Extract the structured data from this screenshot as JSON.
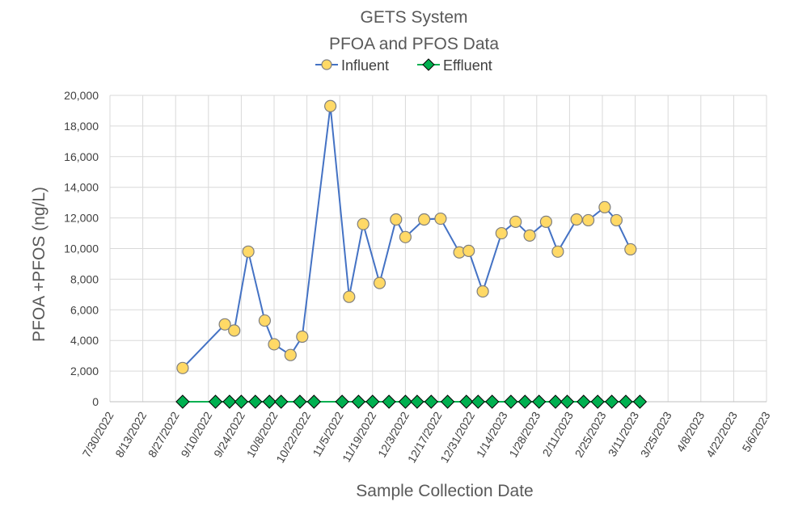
{
  "colors": {
    "influent_line": "#4472c4",
    "influent_marker": "#ffd966",
    "effluent_line": "#00b050",
    "effluent_marker": "#00b050",
    "marker_edge": "#7f7f7f"
  },
  "chart_data": {
    "type": "line",
    "title": "GETS System",
    "subtitle": "PFOA and PFOS Data",
    "xlabel": "Sample Collection Date",
    "ylabel": "PFOA +PFOS (ng/L)",
    "legend_position": "top",
    "grid": true,
    "ylim": [
      0,
      20000
    ],
    "xlim": [
      "7/30/2022",
      "5/6/2023"
    ],
    "y_ticks": [
      "0",
      "2,000",
      "4,000",
      "6,000",
      "8,000",
      "10,000",
      "12,000",
      "14,000",
      "16,000",
      "18,000",
      "20,000"
    ],
    "x_ticks": [
      "7/30/2022",
      "8/13/2022",
      "8/27/2022",
      "9/10/2022",
      "9/24/2022",
      "10/8/2022",
      "10/22/2022",
      "11/5/2022",
      "11/19/2022",
      "12/3/2022",
      "12/17/2022",
      "12/31/2022",
      "1/14/2023",
      "1/28/2023",
      "2/11/2023",
      "2/25/2023",
      "3/11/2023",
      "3/25/2023",
      "4/8/2023",
      "4/22/2023",
      "5/6/2023"
    ],
    "series": [
      {
        "name": "Influent",
        "points": [
          [
            "8/30/2022",
            2200
          ],
          [
            "9/17/2022",
            5050
          ],
          [
            "9/21/2022",
            4650
          ],
          [
            "9/27/2022",
            9800
          ],
          [
            "10/4/2022",
            5300
          ],
          [
            "10/8/2022",
            3750
          ],
          [
            "10/15/2022",
            3050
          ],
          [
            "10/20/2022",
            4250
          ],
          [
            "11/1/2022",
            19300
          ],
          [
            "11/9/2022",
            6850
          ],
          [
            "11/15/2022",
            11600
          ],
          [
            "11/22/2022",
            7750
          ],
          [
            "11/29/2022",
            11900
          ],
          [
            "12/3/2022",
            10750
          ],
          [
            "12/11/2022",
            11900
          ],
          [
            "12/18/2022",
            11950
          ],
          [
            "12/26/2022",
            9750
          ],
          [
            "12/30/2022",
            9850
          ],
          [
            "1/5/2023",
            7200
          ],
          [
            "1/13/2023",
            11000
          ],
          [
            "1/19/2023",
            11750
          ],
          [
            "1/25/2023",
            10850
          ],
          [
            "2/1/2023",
            11750
          ],
          [
            "2/6/2023",
            9800
          ],
          [
            "2/14/2023",
            11900
          ],
          [
            "2/19/2023",
            11850
          ],
          [
            "2/26/2023",
            12700
          ],
          [
            "3/3/2023",
            11850
          ],
          [
            "3/9/2023",
            9950
          ]
        ]
      },
      {
        "name": "Effluent",
        "points": [
          [
            "8/30/2022",
            0
          ],
          [
            "9/13/2022",
            0
          ],
          [
            "9/19/2022",
            0
          ],
          [
            "9/24/2022",
            0
          ],
          [
            "9/30/2022",
            0
          ],
          [
            "10/6/2022",
            0
          ],
          [
            "10/11/2022",
            0
          ],
          [
            "10/19/2022",
            0
          ],
          [
            "10/25/2022",
            0
          ],
          [
            "11/6/2022",
            0
          ],
          [
            "11/13/2022",
            0
          ],
          [
            "11/19/2022",
            0
          ],
          [
            "11/26/2022",
            0
          ],
          [
            "12/3/2022",
            0
          ],
          [
            "12/8/2022",
            0
          ],
          [
            "12/14/2022",
            0
          ],
          [
            "12/21/2022",
            0
          ],
          [
            "12/29/2022",
            0
          ],
          [
            "1/3/2023",
            0
          ],
          [
            "1/9/2023",
            0
          ],
          [
            "1/17/2023",
            0
          ],
          [
            "1/23/2023",
            0
          ],
          [
            "1/29/2023",
            0
          ],
          [
            "2/5/2023",
            0
          ],
          [
            "2/10/2023",
            0
          ],
          [
            "2/17/2023",
            0
          ],
          [
            "2/23/2023",
            0
          ],
          [
            "3/1/2023",
            0
          ],
          [
            "3/7/2023",
            0
          ],
          [
            "3/13/2023",
            0
          ]
        ]
      }
    ]
  }
}
